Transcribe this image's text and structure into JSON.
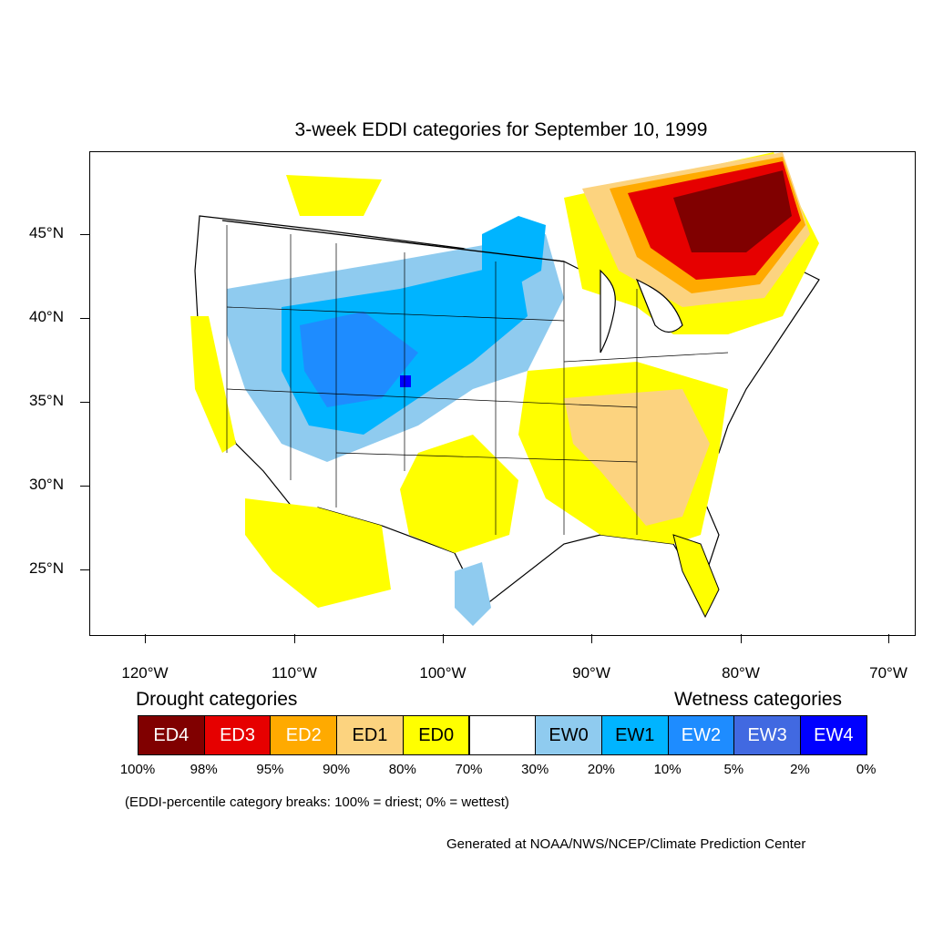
{
  "title": "3-week EDDI categories for September 10, 1999",
  "map": {
    "lat_labels": [
      "45°N",
      "40°N",
      "35°N",
      "30°N",
      "25°N"
    ],
    "lon_labels": [
      "120°W",
      "110°W",
      "100°W",
      "90°W",
      "80°W",
      "70°W"
    ]
  },
  "legend": {
    "drought_heading": "Drought categories",
    "wetness_heading": "Wetness categories",
    "categories": [
      {
        "label": "ED4",
        "color": "#800000",
        "text_color": "#ffffff"
      },
      {
        "label": "ED3",
        "color": "#e60000",
        "text_color": "#ffffff"
      },
      {
        "label": "ED2",
        "color": "#ffaa00",
        "text_color": "#ffffff"
      },
      {
        "label": "ED1",
        "color": "#fcd37f",
        "text_color": "#000000"
      },
      {
        "label": "ED0",
        "color": "#ffff00",
        "text_color": "#000000"
      },
      {
        "label": "",
        "color": "#ffffff",
        "text_color": "#000000"
      },
      {
        "label": "EW0",
        "color": "#8fcbef",
        "text_color": "#000000"
      },
      {
        "label": "EW1",
        "color": "#00b4ff",
        "text_color": "#000000"
      },
      {
        "label": "EW2",
        "color": "#1e8cff",
        "text_color": "#ffffff"
      },
      {
        "label": "EW3",
        "color": "#4169e1",
        "text_color": "#ffffff"
      },
      {
        "label": "EW4",
        "color": "#0000ff",
        "text_color": "#ffffff"
      }
    ],
    "breaks": [
      "100%",
      "98%",
      "95%",
      "90%",
      "80%",
      "70%",
      "30%",
      "20%",
      "10%",
      "5%",
      "2%",
      "0%"
    ],
    "note": "(EDDI-percentile category breaks: 100% = driest; 0% = wettest)"
  },
  "credit": "Generated at NOAA/NWS/NCEP/Climate Prediction Center"
}
